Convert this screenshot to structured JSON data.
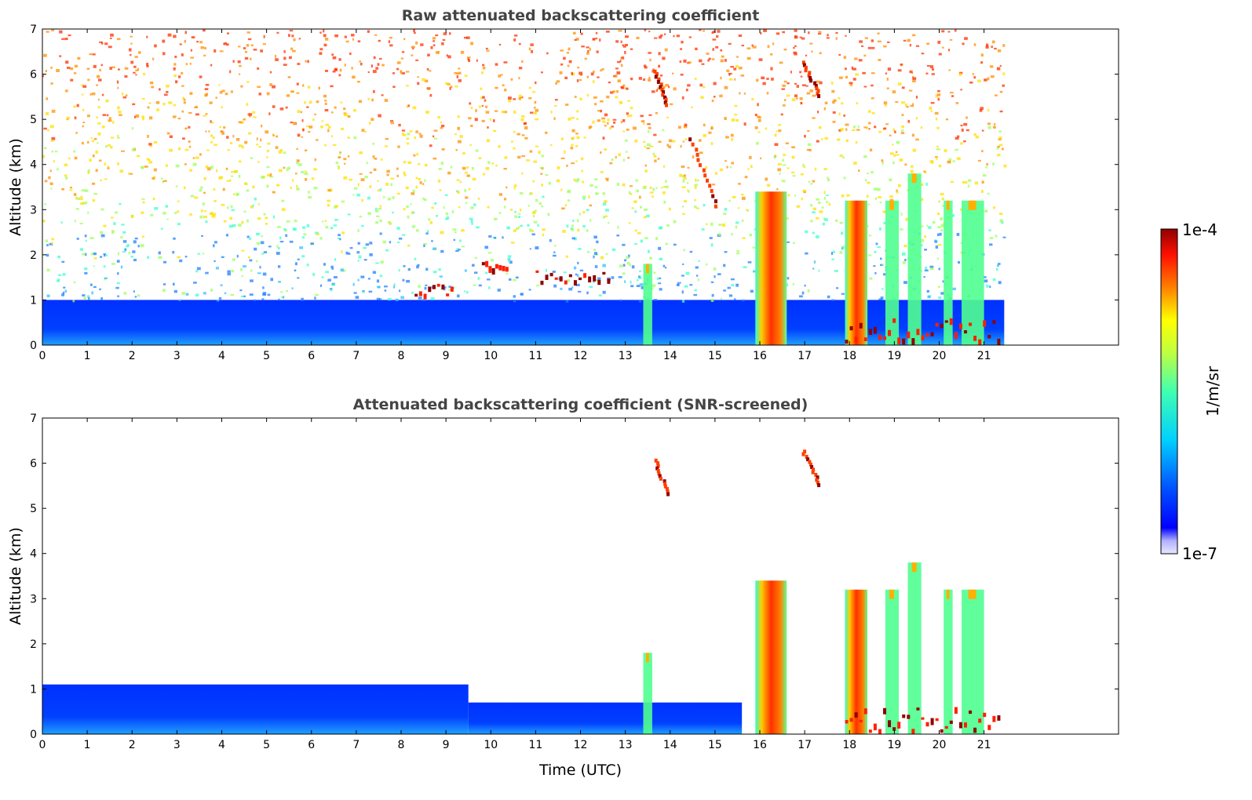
{
  "chart_data": [
    {
      "type": "heatmap",
      "title": "Raw attenuated backscattering coefficient",
      "xlabel": "",
      "ylabel": "Altitude (km)",
      "xlim": [
        0,
        24
      ],
      "ylim": [
        0,
        7
      ],
      "x_ticks": [
        "0",
        "1",
        "2",
        "3",
        "4",
        "5",
        "6",
        "7",
        "8",
        "9",
        "10",
        "11",
        "12",
        "13",
        "14",
        "15",
        "16",
        "17",
        "18",
        "19",
        "20",
        "21"
      ],
      "y_ticks": [
        "0",
        "1",
        "2",
        "3",
        "4",
        "5",
        "6",
        "7"
      ],
      "data_extent_hours": [
        0,
        21.45
      ],
      "features": [
        {
          "kind": "boundary-layer",
          "x": [
            0,
            21.45
          ],
          "y": [
            0,
            1.0
          ],
          "level": "low"
        },
        {
          "kind": "noise",
          "x": [
            0,
            21.45
          ],
          "y": [
            1.0,
            7.0
          ],
          "level": "noisy"
        },
        {
          "kind": "precipitation",
          "x": [
            15.9,
            16.6
          ],
          "y": [
            0,
            3.4
          ],
          "level": "high"
        },
        {
          "kind": "precipitation",
          "x": [
            17.9,
            18.4
          ],
          "y": [
            0,
            3.2
          ],
          "level": "high"
        },
        {
          "kind": "cloud-column",
          "x": [
            13.4,
            13.6
          ],
          "y": [
            0,
            1.8
          ],
          "level": "mid"
        },
        {
          "kind": "cloud-column",
          "x": [
            18.8,
            19.1
          ],
          "y": [
            0,
            3.2
          ],
          "level": "mid"
        },
        {
          "kind": "cloud-column",
          "x": [
            19.3,
            19.6
          ],
          "y": [
            0,
            3.8
          ],
          "level": "mid"
        },
        {
          "kind": "cloud-column",
          "x": [
            20.1,
            20.3
          ],
          "y": [
            0,
            3.2
          ],
          "level": "mid"
        },
        {
          "kind": "cloud-column",
          "x": [
            20.5,
            21.0
          ],
          "y": [
            0,
            3.2
          ],
          "level": "mid"
        },
        {
          "kind": "cloud-layer",
          "x": [
            9.8,
            10.4
          ],
          "y": [
            1.7,
            1.9
          ],
          "level": "high"
        },
        {
          "kind": "cloud-layer",
          "x": [
            8.3,
            9.2
          ],
          "y": [
            1.0,
            1.4
          ],
          "level": "high"
        },
        {
          "kind": "cloud-layer",
          "x": [
            11.0,
            12.7
          ],
          "y": [
            1.4,
            1.7
          ],
          "level": "high"
        },
        {
          "kind": "cirrus",
          "x": [
            13.6,
            13.9
          ],
          "y": [
            5.3,
            6.1
          ],
          "level": "high"
        },
        {
          "kind": "cirrus",
          "x": [
            16.9,
            17.3
          ],
          "y": [
            5.5,
            6.3
          ],
          "level": "high"
        },
        {
          "kind": "cirrus",
          "x": [
            14.4,
            15.0
          ],
          "y": [
            3.0,
            4.6
          ],
          "level": "high"
        },
        {
          "kind": "cloud-base",
          "x": [
            17.9,
            21.4
          ],
          "y": [
            0.1,
            0.6
          ],
          "level": "high"
        }
      ]
    },
    {
      "type": "heatmap",
      "title": "Attenuated backscattering coefficient (SNR-screened)",
      "xlabel": "Time (UTC)",
      "ylabel": "Altitude (km)",
      "xlim": [
        0,
        24
      ],
      "ylim": [
        0,
        7
      ],
      "x_ticks": [
        "0",
        "1",
        "2",
        "3",
        "4",
        "5",
        "6",
        "7",
        "8",
        "9",
        "10",
        "11",
        "12",
        "13",
        "14",
        "15",
        "16",
        "17",
        "18",
        "19",
        "20",
        "21"
      ],
      "y_ticks": [
        "0",
        "1",
        "2",
        "3",
        "4",
        "5",
        "6",
        "7"
      ],
      "data_extent_hours": [
        0,
        21.45
      ],
      "features": [
        {
          "kind": "boundary-layer",
          "x": [
            0,
            9.5
          ],
          "y": [
            0,
            1.1
          ],
          "level": "low"
        },
        {
          "kind": "boundary-layer",
          "x": [
            9.5,
            15.6
          ],
          "y": [
            0,
            0.7
          ],
          "level": "low"
        },
        {
          "kind": "precipitation",
          "x": [
            15.9,
            16.6
          ],
          "y": [
            0,
            3.4
          ],
          "level": "high"
        },
        {
          "kind": "precipitation",
          "x": [
            17.9,
            18.4
          ],
          "y": [
            0,
            3.2
          ],
          "level": "high"
        },
        {
          "kind": "cloud-column",
          "x": [
            13.4,
            13.6
          ],
          "y": [
            0,
            1.8
          ],
          "level": "mid"
        },
        {
          "kind": "cloud-column",
          "x": [
            18.8,
            19.1
          ],
          "y": [
            0,
            3.2
          ],
          "level": "mid"
        },
        {
          "kind": "cloud-column",
          "x": [
            19.3,
            19.6
          ],
          "y": [
            0,
            3.8
          ],
          "level": "mid"
        },
        {
          "kind": "cloud-column",
          "x": [
            20.1,
            20.3
          ],
          "y": [
            0,
            3.2
          ],
          "level": "mid"
        },
        {
          "kind": "cloud-column",
          "x": [
            20.5,
            21.0
          ],
          "y": [
            0,
            3.2
          ],
          "level": "mid"
        },
        {
          "kind": "cirrus",
          "x": [
            13.6,
            13.9
          ],
          "y": [
            5.3,
            6.1
          ],
          "level": "high"
        },
        {
          "kind": "cirrus",
          "x": [
            16.9,
            17.3
          ],
          "y": [
            5.5,
            6.3
          ],
          "level": "high"
        },
        {
          "kind": "cloud-base",
          "x": [
            17.9,
            21.4
          ],
          "y": [
            0.1,
            0.6
          ],
          "level": "high"
        }
      ]
    }
  ],
  "colorbar": {
    "label": "1/m/sr",
    "max_label": "1e-4",
    "min_label": "1e-7",
    "colors": [
      "#00007f",
      "#0000ff",
      "#007fff",
      "#00ffff",
      "#7fff7f",
      "#ffff00",
      "#ff7f00",
      "#ff0000",
      "#7f0000"
    ],
    "scale": "log"
  }
}
